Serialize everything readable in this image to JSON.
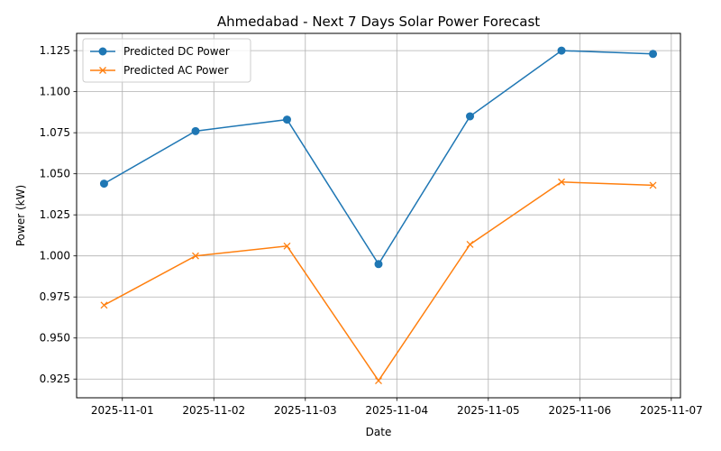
{
  "chart_data": {
    "type": "line",
    "title": "Ahmedabad - Next 7 Days Solar Power Forecast",
    "xlabel": "Date",
    "ylabel": "Power (kW)",
    "xlim": [
      "2025-10-31T12:00",
      "2025-11-07T02:24"
    ],
    "ylim": [
      0.9136,
      1.1355
    ],
    "grid": true,
    "legend_position": "top-left",
    "x_ticks": [
      "2025-11-01",
      "2025-11-02",
      "2025-11-03",
      "2025-11-04",
      "2025-11-05",
      "2025-11-06",
      "2025-11-07"
    ],
    "y_ticks": [
      "0.925",
      "0.950",
      "0.975",
      "1.000",
      "1.025",
      "1.050",
      "1.075",
      "1.100",
      "1.125"
    ],
    "x": [
      "2025-10-31T19:12",
      "2025-11-01T19:12",
      "2025-11-02T19:12",
      "2025-11-03T19:12",
      "2025-11-04T19:12",
      "2025-11-05T19:12",
      "2025-11-06T19:12"
    ],
    "series": [
      {
        "name": "Predicted DC Power",
        "color": "#1f77b4",
        "marker": "circle",
        "values": [
          1.044,
          1.076,
          1.083,
          0.995,
          1.085,
          1.125,
          1.123
        ]
      },
      {
        "name": "Predicted AC Power",
        "color": "#ff7f0e",
        "marker": "x",
        "values": [
          0.97,
          1.0,
          1.006,
          0.924,
          1.007,
          1.045,
          1.043
        ]
      }
    ]
  }
}
